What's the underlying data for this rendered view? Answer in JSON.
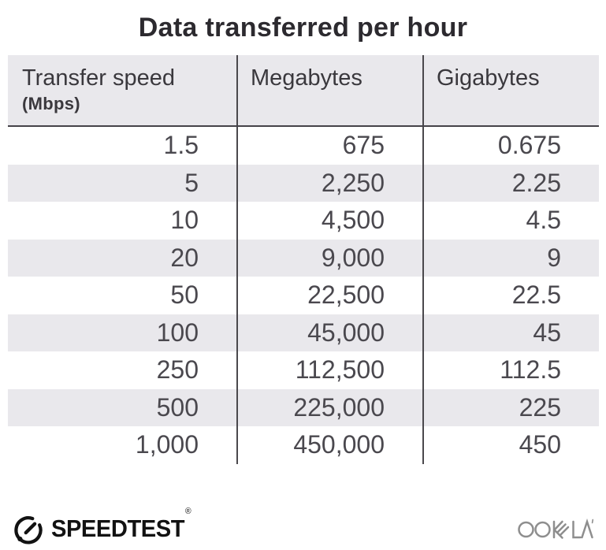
{
  "title": "Data transferred per hour",
  "chart_data": {
    "type": "table",
    "title": "Data transferred per hour",
    "columns": [
      "Transfer speed (Mbps)",
      "Megabytes",
      "Gigabytes"
    ],
    "rows": [
      [
        1.5,
        675,
        0.675
      ],
      [
        5,
        2250,
        2.25
      ],
      [
        10,
        4500,
        4.5
      ],
      [
        20,
        9000,
        9
      ],
      [
        50,
        22500,
        22.5
      ],
      [
        100,
        45000,
        45
      ],
      [
        250,
        112500,
        112.5
      ],
      [
        500,
        225000,
        225
      ],
      [
        1000,
        450000,
        450
      ]
    ],
    "layout": {
      "zebra_striping": true,
      "first_body_row_bg": "white",
      "column_dividers": true,
      "value_alignment": "right"
    }
  },
  "table": {
    "header": {
      "col1_label": "Transfer speed",
      "col1_sublabel": "(Mbps)",
      "col2_label": "Megabytes",
      "col3_label": "Gigabytes"
    },
    "rows_display": [
      [
        "1.5",
        "675",
        "0.675"
      ],
      [
        "5",
        "2,250",
        "2.25"
      ],
      [
        "10",
        "4,500",
        "4.5"
      ],
      [
        "20",
        "9,000",
        "9"
      ],
      [
        "50",
        "22,500",
        "22.5"
      ],
      [
        "100",
        "45,000",
        "45"
      ],
      [
        "250",
        "112,500",
        "112.5"
      ],
      [
        "500",
        "225,000",
        "225"
      ],
      [
        "1,000",
        "450,000",
        "450"
      ]
    ]
  },
  "footer": {
    "brand": "SPEEDTEST",
    "brand_mark": "®",
    "company": "OOKLA"
  },
  "colors": {
    "header_bg": "#e9e8ec",
    "zebra_bg": "#e9e8ec",
    "divider": "#4a484c",
    "header_rule": "#454349",
    "title_text": "#2c2a2f",
    "header_text": "#3a383d",
    "cell_text": "#4a484e",
    "brand_text": "#121212",
    "company_text": "#8e8e8e"
  }
}
